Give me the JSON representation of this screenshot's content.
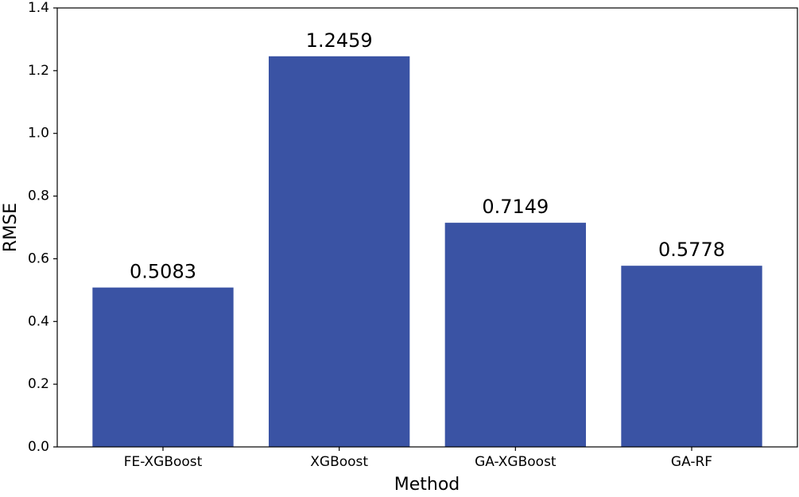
{
  "chart_data": {
    "type": "bar",
    "x_label": "Method",
    "y_label": "RMSE",
    "categories": [
      "FE-XGBoost",
      "XGBoost",
      "GA-XGBoost",
      "GA-RF"
    ],
    "values": [
      0.5083,
      1.2459,
      0.7149,
      0.5778
    ],
    "color": "#3a53a4",
    "ylim": [
      0,
      1.4
    ],
    "yticks": [
      {
        "value": 0,
        "label": "0.0"
      },
      0.2,
      0.4,
      0.6,
      0.8,
      {
        "value": 1,
        "label": "1.0"
      },
      1.2,
      1.4
    ],
    "grid": false
  }
}
